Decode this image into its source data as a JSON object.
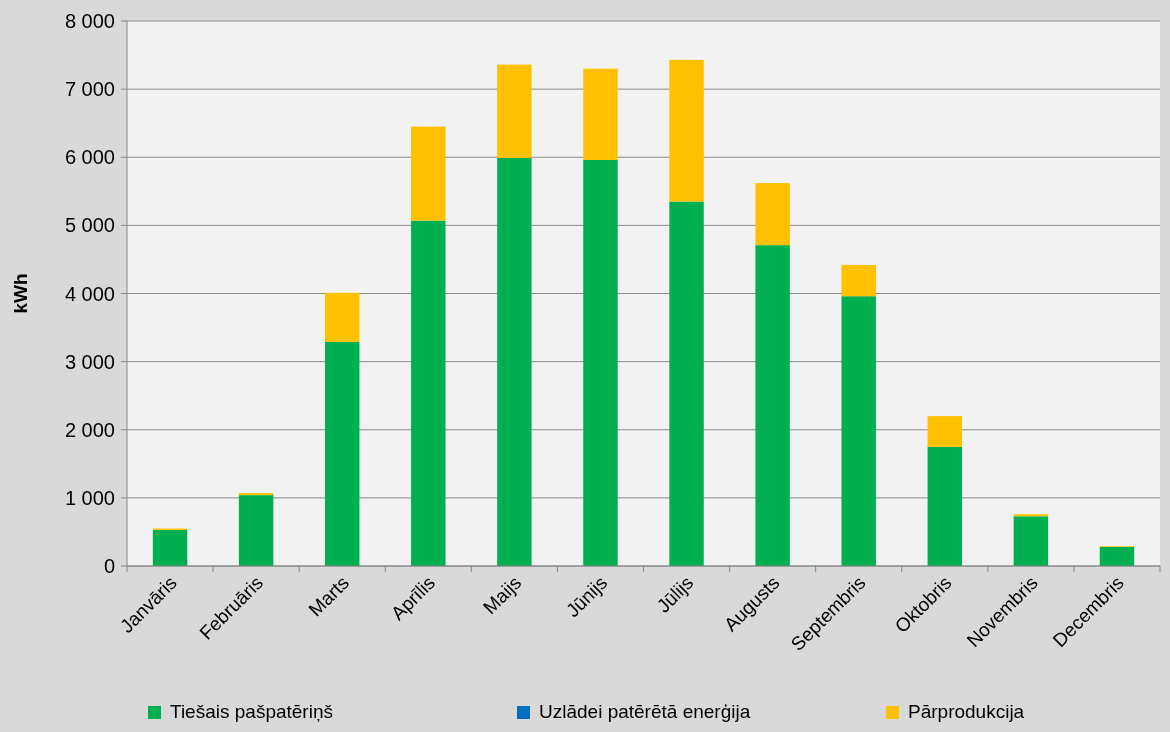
{
  "chart_data": {
    "type": "bar",
    "stacked": true,
    "ylabel": "kWh",
    "categories": [
      "Janvāris",
      "Februāris",
      "Marts",
      "Aprīlis",
      "Maijs",
      "Jūnijs",
      "Jūlijs",
      "Augusts",
      "Septembris",
      "Oktobris",
      "Novembris",
      "Decembris"
    ],
    "series": [
      {
        "name": "Tiešais pašpatēriņš",
        "color": "#00b050",
        "values": [
          530,
          1040,
          3290,
          5070,
          5990,
          5960,
          5350,
          4710,
          3960,
          1750,
          730,
          280
        ]
      },
      {
        "name": "Uzlādei patērētā enerģija",
        "color": "#0070c0",
        "values": [
          0,
          0,
          0,
          0,
          0,
          0,
          0,
          0,
          0,
          0,
          0,
          0
        ]
      },
      {
        "name": "Pārprodukcija",
        "color": "#ffc000",
        "values": [
          20,
          30,
          720,
          1380,
          1370,
          1340,
          2080,
          910,
          460,
          450,
          30,
          10
        ]
      }
    ],
    "ylim": [
      0,
      8000
    ],
    "yticks": [
      0,
      {
        "value": 1000,
        "label": "1 000"
      },
      {
        "value": 2000,
        "label": "2 000"
      },
      {
        "value": 3000,
        "label": "3 000"
      },
      {
        "value": 4000,
        "label": "4 000"
      },
      {
        "value": 5000,
        "label": "5 000"
      },
      {
        "value": 6000,
        "label": "6 000"
      },
      {
        "value": 7000,
        "label": "7 000"
      },
      {
        "value": 8000,
        "label": "8 000"
      }
    ],
    "grid": "y",
    "legend": "bottom"
  }
}
